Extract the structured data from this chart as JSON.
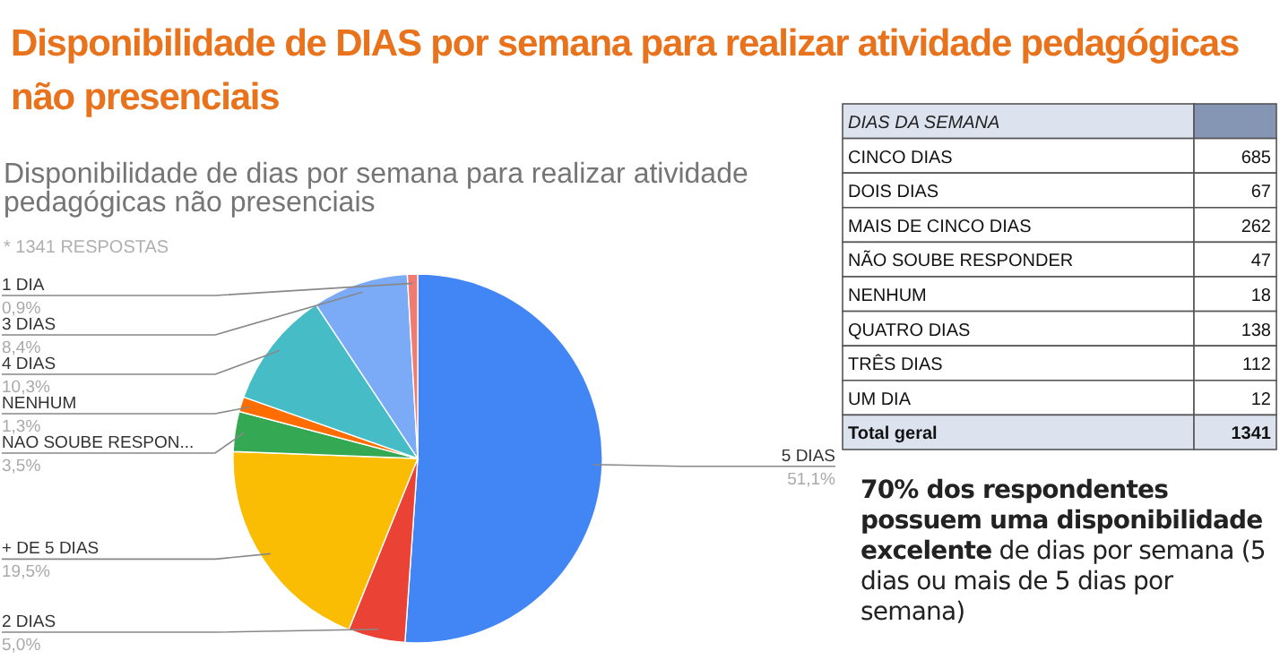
{
  "chart_data": [
    {
      "type": "pie",
      "title": "Disponibilidade de DIAS por semana para realizar atividade pedagógicas não presenciais",
      "subtitle": "Disponibilidade de dias por semana para realizar atividade pedagógicas não presenciais",
      "categories": [
        "5 DIAS",
        "2 DIAS",
        "+ DE 5 DIAS",
        "NAO SOUBE RESPON...",
        "NENHUM",
        "4 DIAS",
        "3 DIAS",
        "1 DIA"
      ],
      "values": [
        51.1,
        5.0,
        19.5,
        3.5,
        1.3,
        10.3,
        8.4,
        0.9
      ],
      "value_labels": [
        "51,1%",
        "5,0%",
        "19,5%",
        "3,5%",
        "1,3%",
        "10,3%",
        "8,4%",
        "0,9%"
      ],
      "colors": [
        "#4285f4",
        "#ea4335",
        "#fbbc04",
        "#34a853",
        "#ff6d01",
        "#46bdc6",
        "#7baaf7",
        "#f07b72"
      ],
      "annotations": [
        "* 1341 RESPOSTAS",
        "70% dos respondentes possuem uma disponibilidade excelente",
        "de dias por semana (5 dias ou mais de 5 dias por semana)"
      ]
    },
    {
      "type": "other",
      "title": "DIAS DA SEMANA",
      "categories": [
        "CINCO DIAS",
        "DOIS DIAS",
        "MAIS DE CINCO DIAS",
        "NÃO SOUBE RESPONDER",
        "NENHUM",
        "QUATRO DIAS",
        "TRÊS DIAS",
        "UM DIA"
      ],
      "values": [
        685,
        67,
        262,
        47,
        18,
        138,
        112,
        12
      ],
      "data_labels": true,
      "annotations": [
        "Total geral",
        "1341"
      ]
    }
  ]
}
